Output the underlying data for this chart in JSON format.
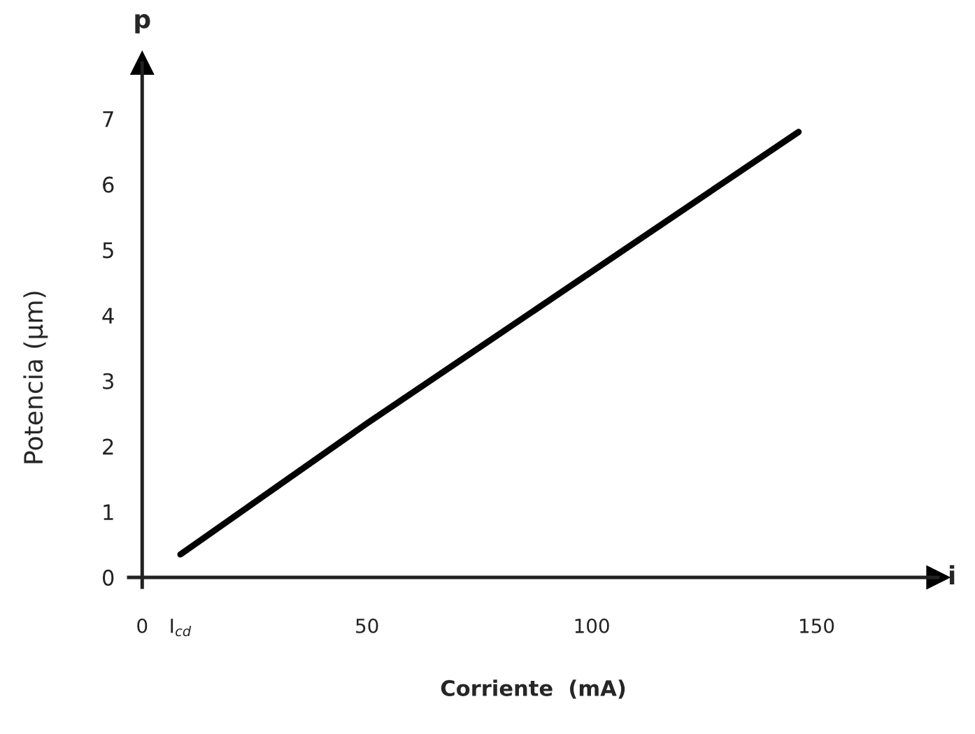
{
  "chart_data": {
    "type": "line",
    "xlabel": "Corriente  (mA)",
    "ylabel": "Potencia (µm)",
    "annotations": [
      "p",
      "i"
    ],
    "x": [
      8.5,
      50,
      146
    ],
    "series": [
      {
        "color": "#000000",
        "values": [
          0.35,
          2.35,
          6.8
        ]
      }
    ],
    "xlim": [
      -3,
      177
    ],
    "ylim": [
      -0.15,
      7.85
    ],
    "xticks": [
      0,
      {
        "value": 8.5,
        "label": "I$_{cd}$"
      },
      50,
      100,
      150
    ],
    "yticks": [
      0,
      1,
      2,
      3,
      4,
      5,
      6,
      7
    ],
    "grid": false,
    "legend": false,
    "marker": "none",
    "line_style": "solid"
  }
}
